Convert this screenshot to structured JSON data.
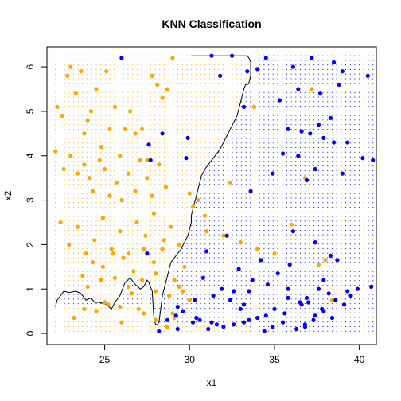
{
  "chart_data": {
    "type": "scatter",
    "title": "KNN Classification",
    "xlabel": "x1",
    "ylabel": "x2",
    "xlim": [
      21.6,
      41.0
    ],
    "ylim": [
      -0.25,
      6.45
    ],
    "xticks": [
      25,
      30,
      35,
      40
    ],
    "yticks": [
      0,
      1,
      2,
      3,
      4,
      5,
      6
    ],
    "grid_extent": {
      "x": [
        22.1,
        40.8
      ],
      "y": [
        0.05,
        6.25
      ]
    },
    "colors": {
      "orange": "#FFA500",
      "blue": "#0000FF",
      "boundary": "#000000"
    },
    "decision_boundary": {
      "x": [
        22.1,
        22.2,
        22.4,
        22.6,
        22.9,
        23.3,
        23.6,
        23.9,
        24.2,
        24.4,
        24.7,
        25.1,
        25.4,
        25.6,
        25.9,
        26.2,
        26.5,
        26.8,
        27.1,
        27.3,
        27.5,
        27.6,
        27.8,
        27.9,
        28.0,
        28.1,
        28.2,
        28.3,
        28.4,
        28.5,
        28.6,
        28.7,
        28.8,
        28.9,
        29.2,
        29.5,
        29.7,
        29.9,
        30.0,
        30.1,
        30.1,
        30.2,
        30.3,
        30.4,
        30.5,
        30.6,
        30.7,
        30.9,
        31.2,
        31.5,
        31.8,
        32.0,
        32.2,
        32.4,
        32.6,
        32.8,
        32.9,
        33.0,
        33.1,
        33.2,
        33.3,
        33.4,
        33.5,
        33.6,
        33.6,
        33.6,
        33.5,
        33.4,
        33.3,
        33.2,
        33.0,
        32.8,
        32.6,
        32.3,
        32.0,
        31.7,
        31.4,
        31.1,
        30.9,
        30.7,
        30.5,
        30.4,
        30.3,
        30.3,
        30.2,
        30.2,
        30.2,
        30.1,
        30.1,
        30.1,
        30.2,
        30.2
      ],
      "y": [
        0.6,
        0.75,
        0.85,
        0.95,
        0.92,
        0.95,
        0.9,
        0.75,
        0.8,
        0.7,
        0.7,
        0.65,
        0.55,
        0.7,
        0.85,
        1.15,
        1.25,
        1.1,
        1.0,
        1.05,
        1.2,
        1.15,
        0.95,
        0.35,
        0.2,
        0.2,
        0.25,
        0.55,
        0.85,
        1.0,
        1.15,
        1.3,
        1.45,
        1.6,
        1.75,
        1.9,
        2.05,
        2.2,
        2.35,
        2.5,
        2.65,
        2.8,
        2.95,
        3.1,
        3.25,
        3.4,
        3.55,
        3.7,
        3.85,
        4.0,
        4.15,
        4.3,
        4.45,
        4.6,
        4.75,
        4.9,
        5.05,
        5.2,
        5.35,
        5.5,
        5.6,
        5.6,
        5.65,
        5.8,
        5.95,
        6.1,
        6.2,
        6.25,
        6.25,
        6.25,
        6.25,
        6.25,
        6.25,
        6.25,
        6.25,
        6.25,
        6.25,
        6.25,
        6.25,
        6.25,
        6.25,
        6.25,
        6.25,
        6.25,
        6.25,
        6.25,
        6.25,
        6.25,
        6.25,
        6.25,
        6.25,
        6.25
      ]
    },
    "series": [
      {
        "color": "orange",
        "x": [
          22.2,
          22.5,
          22.8,
          23.0,
          23.3,
          23.6,
          23.8,
          24.0,
          24.2,
          24.5,
          24.8,
          25.1,
          25.3,
          25.6,
          25.9,
          26.2,
          26.5,
          26.8,
          27.2,
          27.5,
          27.8,
          28.1,
          28.4,
          28.7,
          29.0,
          22.1,
          22.6,
          23.0,
          23.4,
          23.8,
          24.1,
          24.3,
          24.7,
          25.0,
          25.3,
          25.7,
          26.0,
          26.4,
          26.8,
          27.1,
          27.5,
          27.8,
          28.2,
          28.6,
          22.4,
          22.9,
          23.4,
          23.9,
          24.4,
          24.9,
          25.4,
          25.9,
          26.4,
          26.9,
          27.4,
          27.9,
          28.4,
          28.9,
          29.4,
          23.7,
          24.3,
          24.9,
          25.5,
          26.1,
          26.7,
          27.3,
          27.9,
          28.5,
          29.1,
          29.7,
          23.2,
          23.8,
          24.5,
          25.2,
          25.9,
          26.6,
          27.3,
          28.0,
          28.7,
          29.4,
          24.0,
          24.8,
          25.6,
          26.4,
          27.2,
          28.0,
          28.8,
          29.6,
          25.0,
          26.0,
          27.0,
          28.0,
          29.0,
          30.0,
          31.0,
          32.0,
          33.0,
          34.0,
          35.0,
          36.0,
          36.8,
          37.2,
          37.6,
          38.0,
          38.4,
          29.1,
          30.9,
          32.4,
          33.8,
          30.5,
          30.2,
          30.0
        ],
        "y": [
          5.1,
          4.9,
          5.8,
          6.0,
          5.4,
          5.9,
          4.5,
          4.8,
          5.0,
          5.5,
          4.2,
          5.9,
          4.6,
          5.1,
          4.0,
          4.6,
          5.0,
          4.5,
          4.6,
          3.9,
          5.8,
          5.6,
          5.3,
          5.5,
          6.2,
          4.1,
          3.7,
          4.0,
          3.6,
          3.8,
          3.5,
          3.2,
          3.9,
          3.7,
          3.1,
          3.4,
          3.0,
          3.6,
          3.2,
          3.9,
          3.5,
          3.1,
          3.8,
          3.3,
          2.5,
          2.0,
          2.4,
          1.8,
          2.1,
          2.6,
          1.9,
          2.3,
          1.8,
          2.5,
          2.2,
          2.7,
          1.9,
          2.4,
          2.0,
          1.3,
          1.6,
          1.5,
          1.8,
          1.7,
          1.4,
          1.9,
          1.6,
          2.1,
          1.2,
          1.5,
          0.35,
          0.55,
          0.5,
          0.65,
          0.6,
          0.9,
          0.45,
          0.3,
          0.15,
          1.05,
          1.05,
          1.2,
          1.25,
          1.05,
          1.2,
          1.35,
          0.85,
          0.95,
          0.7,
          0.25,
          0.55,
          0.95,
          0.45,
          0.75,
          2.3,
          2.2,
          2.05,
          1.9,
          1.8,
          2.45,
          3.5,
          5.5,
          1.55,
          1.65,
          0.75,
          0.35,
          2.65,
          3.4,
          5.1,
          3.0,
          2.85,
          3.15
        ]
      },
      {
        "color": "blue",
        "x": [
          26.0,
          29.9,
          28.4,
          27.6,
          27.7,
          29.8,
          27.5,
          31.3,
          32.5,
          34.5,
          36.1,
          37.2,
          38.5,
          39.0,
          40.5,
          38.8,
          37.7,
          36.4,
          35.3,
          33.4,
          34.0,
          31.8,
          33.2,
          35.8,
          37.9,
          40.8,
          38.5,
          36.6,
          37.6,
          38.3,
          39.3,
          37.1,
          35.5,
          36.4,
          37.4,
          39.0,
          40.2,
          36.9,
          34.9,
          33.6,
          32.2,
          31.0,
          30.3,
          30.8,
          32.9,
          34.2,
          33.5,
          36.5,
          37.9,
          38.7,
          39.9,
          36.1,
          37.4,
          38.3,
          35.9,
          35.2,
          34.6,
          33.0,
          31.6,
          32.6,
          30.4,
          29.6,
          28.7,
          29.3,
          31.4,
          32.4,
          33.2,
          34.5,
          35.5,
          36.8,
          37.0,
          37.9,
          38.4,
          39.1,
          37.4,
          36.3,
          34.4,
          33.5,
          32.6,
          31.3,
          30.6,
          29.2,
          31.9,
          33.7,
          35.8,
          37.3,
          36.8,
          34.9,
          35.8,
          36.9,
          37.8,
          39.3,
          40.7,
          39.5,
          38.6,
          38.2,
          37.6,
          36.6,
          35.6,
          35.0,
          34.0,
          33.2,
          32.0,
          31.1,
          30.2,
          29.3,
          28.2
        ],
        "y": [
          6.2,
          4.4,
          4.5,
          4.25,
          3.9,
          3.95,
          1.8,
          6.25,
          6.25,
          6.2,
          6.0,
          6.2,
          6.1,
          5.9,
          5.8,
          5.6,
          5.4,
          5.5,
          5.25,
          5.9,
          5.95,
          5.8,
          5.1,
          4.6,
          4.4,
          3.9,
          4.3,
          4.55,
          4.7,
          4.85,
          4.3,
          4.5,
          4.05,
          4.0,
          3.7,
          3.6,
          3.95,
          3.45,
          3.6,
          3.2,
          2.2,
          1.85,
          0.75,
          1.25,
          1.45,
          1.65,
          0.95,
          0.7,
          1.2,
          1.65,
          1.0,
          2.3,
          2.05,
          1.75,
          1.55,
          1.35,
          1.1,
          0.55,
          0.2,
          0.95,
          0.35,
          0.5,
          0.3,
          0.6,
          0.85,
          0.75,
          0.65,
          0.4,
          0.25,
          0.15,
          0.7,
          0.5,
          0.35,
          0.65,
          0.4,
          0.1,
          0.05,
          0.3,
          0.2,
          0.25,
          0.3,
          0.4,
          1.0,
          1.2,
          0.8,
          0.3,
          0.2,
          0.15,
          1.0,
          0.8,
          0.55,
          0.95,
          1.05,
          0.85,
          0.75,
          0.9,
          1.0,
          0.65,
          0.45,
          0.55,
          0.35,
          0.25,
          0.15,
          0.1,
          0.25,
          0.1,
          0.05
        ]
      }
    ]
  }
}
